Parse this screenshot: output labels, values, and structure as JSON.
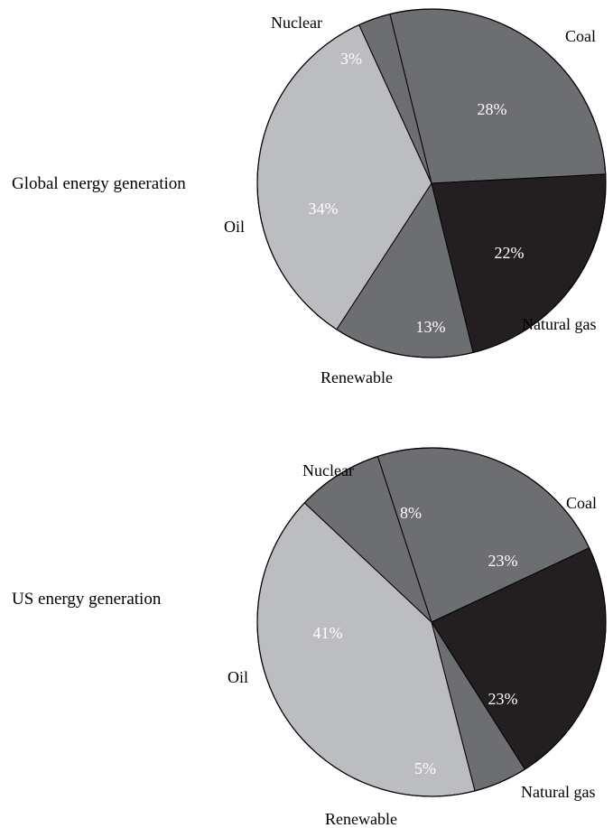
{
  "chart_data": [
    {
      "type": "pie",
      "title": "Global energy generation",
      "slices": [
        {
          "label": "Coal",
          "value": 28,
          "value_label": "28%",
          "color": "#6d6e72"
        },
        {
          "label": "Natural gas",
          "value": 22,
          "value_label": "22%",
          "color": "#231f20"
        },
        {
          "label": "Renewable",
          "value": 13,
          "value_label": "13%",
          "color": "#6d6e72"
        },
        {
          "label": "Oil",
          "value": 34,
          "value_label": "34%",
          "color": "#bcbdc1"
        },
        {
          "label": "Nuclear",
          "value": 3,
          "value_label": "3%",
          "color": "#6d6e72"
        }
      ]
    },
    {
      "type": "pie",
      "title": "US energy generation",
      "slices": [
        {
          "label": "Coal",
          "value": 23,
          "value_label": "23%",
          "color": "#6d6e72"
        },
        {
          "label": "Natural gas",
          "value": 23,
          "value_label": "23%",
          "color": "#231f20"
        },
        {
          "label": "Renewable",
          "value": 5,
          "value_label": "5%",
          "color": "#6d6e72"
        },
        {
          "label": "Oil",
          "value": 41,
          "value_label": "41%",
          "color": "#bcbdc1"
        },
        {
          "label": "Nuclear",
          "value": 8,
          "value_label": "8%",
          "color": "#6d6e72"
        }
      ]
    }
  ]
}
